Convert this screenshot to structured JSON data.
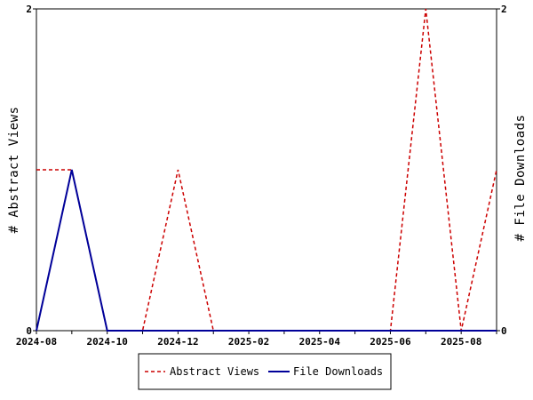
{
  "chart_data": {
    "type": "line",
    "x": [
      "2024-08",
      "2024-09",
      "2024-10",
      "2024-11",
      "2024-12",
      "2025-01",
      "2025-02",
      "2025-03",
      "2025-04",
      "2025-05",
      "2025-06",
      "2025-07",
      "2025-08",
      "2025-09"
    ],
    "x_tick_labels": [
      "2024-08",
      "2024-10",
      "2024-12",
      "2025-02",
      "2025-04",
      "2025-06",
      "2025-08"
    ],
    "series": [
      {
        "name": "Abstract Views",
        "axis": "left",
        "color": "#cc0000",
        "style": "dashed",
        "values": [
          1,
          1,
          0,
          0,
          1,
          0,
          0,
          0,
          0,
          0,
          0,
          2,
          0,
          1
        ]
      },
      {
        "name": "File Downloads",
        "axis": "right",
        "color": "#000099",
        "style": "solid",
        "values": [
          0,
          1,
          0,
          0,
          0,
          0,
          0,
          0,
          0,
          0,
          0,
          0,
          0,
          0
        ]
      }
    ],
    "ylabel_left": "# Abstract Views",
    "ylabel_right": "# File Downloads",
    "ylim_left": [
      0,
      2
    ],
    "ylim_right": [
      0,
      2
    ],
    "y_ticks_left": [
      "0",
      "2"
    ],
    "y_ticks_right": [
      "0",
      "2"
    ],
    "grid": false,
    "legend_position": "bottom"
  }
}
